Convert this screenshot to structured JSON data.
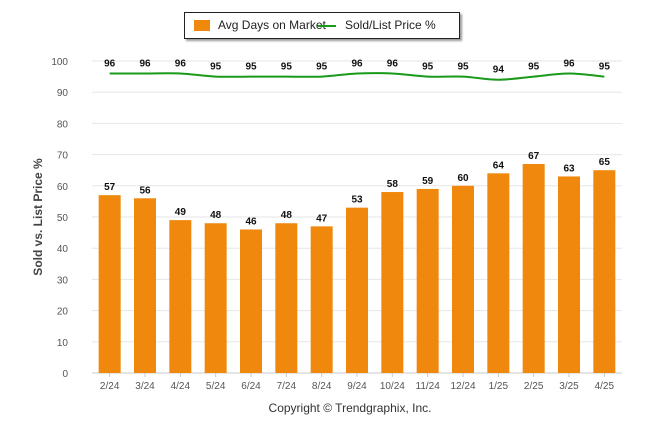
{
  "footer": {
    "copyright": "Copyright © Trendgraphix, Inc."
  },
  "colors": {
    "bar": "#f0880e",
    "line": "#1a9a1a",
    "grid": "#e6e6e6",
    "axis_text": "#555555",
    "label_text": "#111111"
  },
  "chart_data": {
    "type": "bar",
    "categories": [
      "2/24",
      "3/24",
      "4/24",
      "5/24",
      "6/24",
      "7/24",
      "8/24",
      "9/24",
      "10/24",
      "11/24",
      "12/24",
      "1/25",
      "2/25",
      "3/25",
      "4/25"
    ],
    "series": [
      {
        "name": "Avg Days on Market",
        "type": "bar",
        "values": [
          57,
          56,
          49,
          48,
          46,
          48,
          47,
          53,
          58,
          59,
          60,
          64,
          67,
          63,
          65
        ]
      },
      {
        "name": "Sold/List Price %",
        "type": "line",
        "values": [
          96,
          96,
          96,
          95,
          95,
          95,
          95,
          96,
          96,
          95,
          95,
          94,
          95,
          96,
          95
        ]
      }
    ],
    "title": "",
    "xlabel": "",
    "ylabel": "Sold vs. List Price %",
    "ylim": [
      0,
      100
    ],
    "yticks": [
      0,
      10,
      20,
      30,
      40,
      50,
      60,
      70,
      80,
      90,
      100
    ],
    "grid": true,
    "legend": "top-center"
  }
}
